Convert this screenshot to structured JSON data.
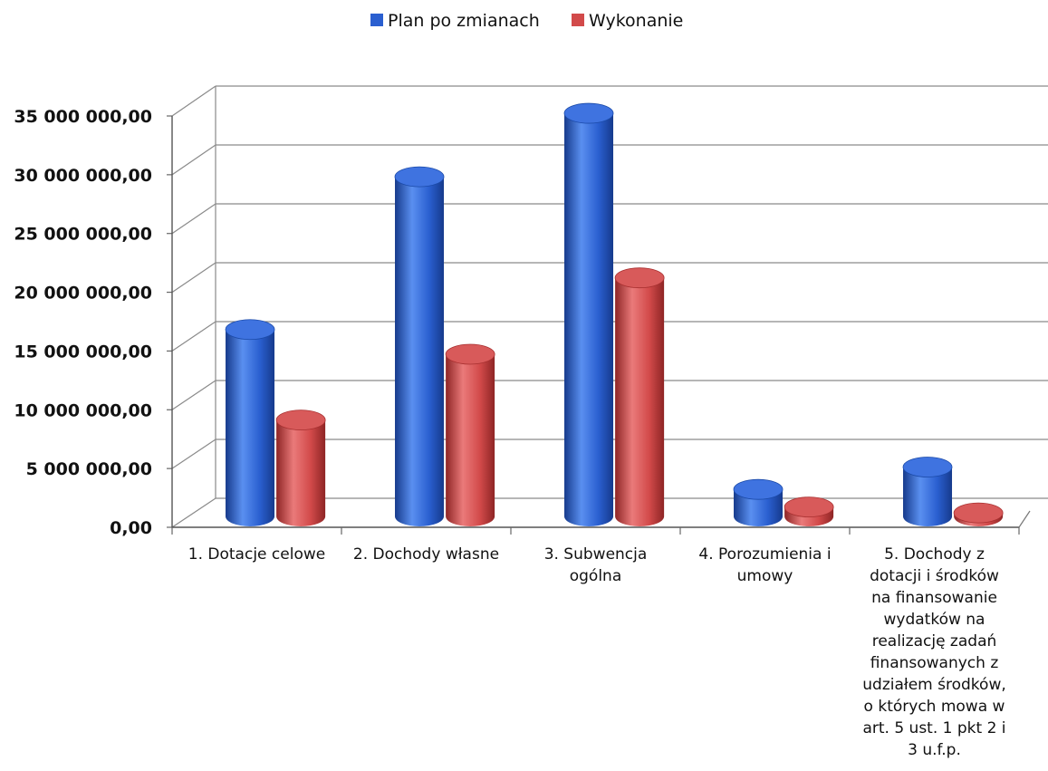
{
  "chart_data": {
    "type": "bar",
    "categories": [
      "1. Dotacje celowe",
      "2. Dochody własne",
      "3. Subwencja\nogólna",
      "4. Porozumienia i\numowy",
      "5. Dochody z\ndotacji i środków\nna finansowanie\nwydatków na\nrealizację zadań\nfinansowanych z\nudziałem środków,\no których mowa w\nart. 5 ust. 1 pkt  2 i\n3 u.f.p."
    ],
    "series": [
      {
        "name": "Plan po zmianach",
        "color": "#2a5fd0",
        "values": [
          15900000,
          28900000,
          34300000,
          2300000,
          4200000
        ]
      },
      {
        "name": "Wykonanie",
        "color": "#d24a4a",
        "values": [
          8200000,
          13800000,
          20300000,
          800000,
          300000
        ]
      }
    ],
    "ylim": [
      0,
      35000000
    ],
    "yticks": [
      "0,00",
      "5 000 000,00",
      "10 000 000,00",
      "15 000 000,00",
      "20 000 000,00",
      "25 000 000,00",
      "30 000 000,00",
      "35 000 000,00"
    ],
    "grid": true,
    "legend": "top-center"
  }
}
